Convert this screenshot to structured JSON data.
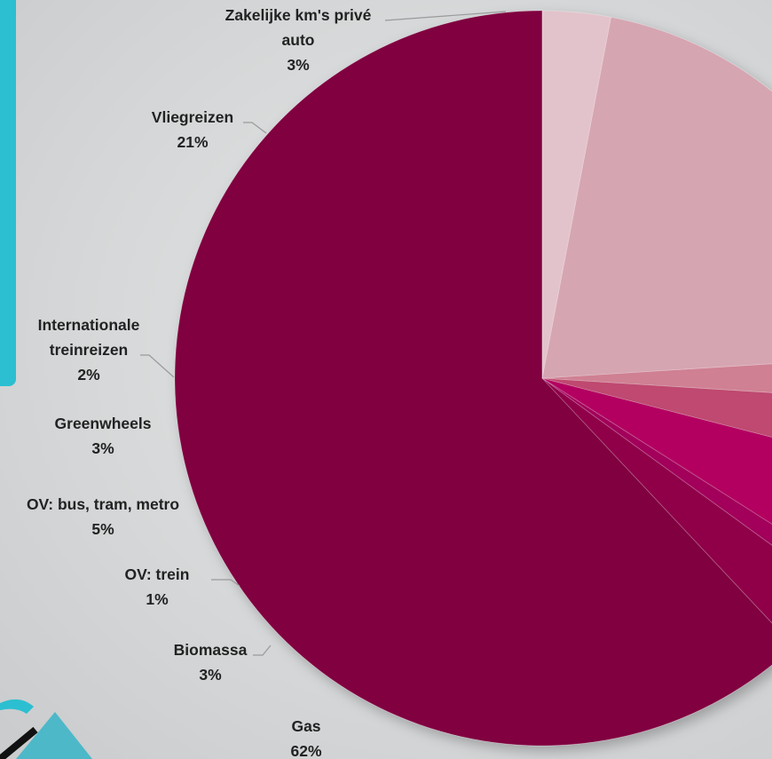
{
  "chart_data": {
    "type": "pie",
    "title": "",
    "legend": "none",
    "slices": [
      {
        "label": "Gas",
        "value": 62,
        "value_label": "62%",
        "color": "#80003f"
      },
      {
        "label": "Biomassa",
        "value": 3,
        "value_label": "3%",
        "color": "#90004a"
      },
      {
        "label": "OV: trein",
        "value": 1,
        "value_label": "1%",
        "color": "#a2005a"
      },
      {
        "label": "OV: bus, tram, metro",
        "value": 5,
        "value_label": "5%",
        "color": "#b30060"
      },
      {
        "label": "Greenwheels",
        "value": 3,
        "value_label": "3%",
        "color": "#bf4a70"
      },
      {
        "label": "Internationale treinreizen",
        "value": 2,
        "value_label": "2%",
        "color": "#cf8092"
      },
      {
        "label": "Vliegreizen",
        "value": 21,
        "value_label": "21%",
        "color": "#d6a5b2"
      },
      {
        "label": "Zakelijke km's privé auto",
        "value": 3,
        "value_label": "3%",
        "color": "#e3c3cb"
      }
    ]
  }
}
